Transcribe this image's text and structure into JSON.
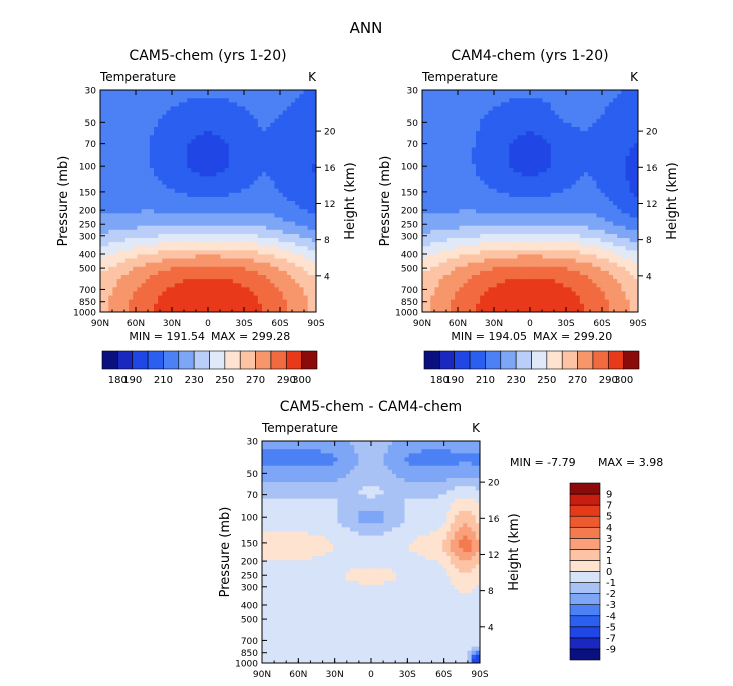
{
  "figure": {
    "title": "ANN",
    "colors": {
      "axis": "#000000",
      "background": "#ffffff"
    }
  },
  "chart_data": [
    {
      "type": "heatmap",
      "title": "CAM5-chem (yrs 1-20)",
      "subtitle_left": "Temperature",
      "subtitle_right": "K",
      "ylabel": "Pressure (mb)",
      "y2label": "Height (km)",
      "x_ticks": [
        "90N",
        "60N",
        "30N",
        "0",
        "30S",
        "60S",
        "90S"
      ],
      "x_lat": [
        90,
        60,
        30,
        0,
        -30,
        -60,
        -90
      ],
      "y_ticks": [
        "30",
        "50",
        "70",
        "100",
        "150",
        "200",
        "250",
        "300",
        "400",
        "500",
        "700",
        "850",
        "1000"
      ],
      "y_pressure": [
        30,
        50,
        70,
        100,
        150,
        200,
        250,
        300,
        400,
        500,
        700,
        850,
        1000
      ],
      "height_ticks": [
        "4",
        "8",
        "12",
        "16",
        "20"
      ],
      "height_km": [
        4,
        8,
        12,
        16,
        20
      ],
      "min_text": "MIN = 191.54",
      "max_text": "MAX = 299.28",
      "min_value": 191.54,
      "max_value": 299.28,
      "field": "cam5",
      "colorbar": {
        "orientation": "horizontal",
        "labels": [
          "180",
          "190",
          "210",
          "230",
          "250",
          "270",
          "290",
          "300"
        ],
        "boundaries": [
          180,
          190,
          200,
          210,
          220,
          230,
          240,
          250,
          260,
          270,
          280,
          290,
          300
        ],
        "colors": [
          "#0a1080",
          "#1a28c0",
          "#2046e6",
          "#2a5ff0",
          "#4c80f5",
          "#7ea6f7",
          "#b9cef8",
          "#e0e9f8",
          "#fde3d0",
          "#fcc3a5",
          "#f7956b",
          "#f26a3f",
          "#e83a1a",
          "#8b0a0a"
        ]
      }
    },
    {
      "type": "heatmap",
      "title": "CAM4-chem (yrs 1-20)",
      "subtitle_left": "Temperature",
      "subtitle_right": "K",
      "ylabel": "Pressure (mb)",
      "y2label": "Height (km)",
      "x_ticks": [
        "90N",
        "60N",
        "30N",
        "0",
        "30S",
        "60S",
        "90S"
      ],
      "x_lat": [
        90,
        60,
        30,
        0,
        -30,
        -60,
        -90
      ],
      "y_ticks": [
        "30",
        "50",
        "70",
        "100",
        "150",
        "200",
        "250",
        "300",
        "400",
        "500",
        "700",
        "850",
        "1000"
      ],
      "y_pressure": [
        30,
        50,
        70,
        100,
        150,
        200,
        250,
        300,
        400,
        500,
        700,
        850,
        1000
      ],
      "height_ticks": [
        "4",
        "8",
        "12",
        "16",
        "20"
      ],
      "height_km": [
        4,
        8,
        12,
        16,
        20
      ],
      "min_text": "MIN = 194.05",
      "max_text": "MAX = 299.20",
      "min_value": 194.05,
      "max_value": 299.2,
      "field": "cam4",
      "colorbar": {
        "orientation": "horizontal",
        "labels": [
          "180",
          "190",
          "210",
          "230",
          "250",
          "270",
          "290",
          "300"
        ],
        "boundaries": [
          180,
          190,
          200,
          210,
          220,
          230,
          240,
          250,
          260,
          270,
          280,
          290,
          300
        ],
        "colors": [
          "#0a1080",
          "#1a28c0",
          "#2046e6",
          "#2a5ff0",
          "#4c80f5",
          "#7ea6f7",
          "#b9cef8",
          "#e0e9f8",
          "#fde3d0",
          "#fcc3a5",
          "#f7956b",
          "#f26a3f",
          "#e83a1a",
          "#8b0a0a"
        ]
      }
    },
    {
      "type": "heatmap",
      "title": "CAM5-chem - CAM4-chem",
      "subtitle_left": "Temperature",
      "subtitle_right": "K",
      "ylabel": "Pressure (mb)",
      "y2label": "Height (km)",
      "x_ticks": [
        "90N",
        "60N",
        "30N",
        "0",
        "30S",
        "60S",
        "90S"
      ],
      "x_lat": [
        90,
        60,
        30,
        0,
        -30,
        -60,
        -90
      ],
      "y_ticks": [
        "30",
        "50",
        "70",
        "100",
        "150",
        "200",
        "250",
        "300",
        "400",
        "500",
        "700",
        "850",
        "1000"
      ],
      "y_pressure": [
        30,
        50,
        70,
        100,
        150,
        200,
        250,
        300,
        400,
        500,
        700,
        850,
        1000
      ],
      "height_ticks": [
        "4",
        "8",
        "12",
        "16",
        "20"
      ],
      "height_km": [
        4,
        8,
        12,
        16,
        20
      ],
      "min_text": "MIN =   -7.79",
      "max_text": "MAX =    3.98",
      "min_value": -7.79,
      "max_value": 3.98,
      "field": "diff",
      "colorbar": {
        "orientation": "vertical",
        "labels": [
          "9",
          "7",
          "5",
          "4",
          "3",
          "2",
          "1",
          "0",
          "-1",
          "-2",
          "-3",
          "-4",
          "-5",
          "-7",
          "-9"
        ],
        "boundaries": [
          -9,
          -7,
          -5,
          -4,
          -3,
          -2,
          -1,
          0,
          1,
          2,
          3,
          4,
          5,
          7,
          9
        ],
        "colors": [
          "#0a1080",
          "#1a28c0",
          "#2046e6",
          "#2a5ff0",
          "#4c80f5",
          "#7ea6f7",
          "#a9c2f6",
          "#d6e3f8",
          "#fde3d0",
          "#fcc3a5",
          "#f9a07b",
          "#f47a4f",
          "#ee5a30",
          "#e43c1a",
          "#c81e10",
          "#8b0a0a"
        ]
      }
    }
  ]
}
